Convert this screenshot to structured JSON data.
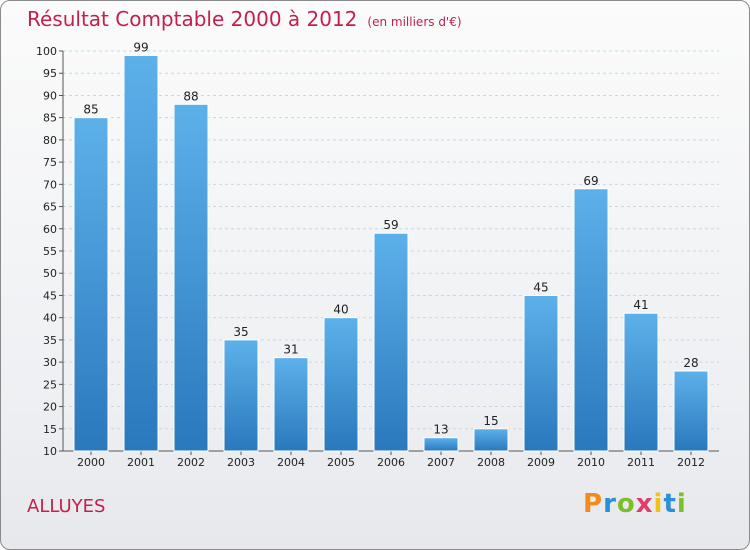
{
  "header": {
    "title": "Résultat Comptable 2000 à 2012",
    "subtitle": "(en milliers d'€)"
  },
  "footer": {
    "commune": "ALLUYES",
    "logo_letters": [
      "P",
      "r",
      "o",
      "x",
      "i",
      "t",
      "i"
    ],
    "logo_colors": [
      "#f28a1c",
      "#2a8fd6",
      "#7cbf2a",
      "#e23d6a",
      "#f2c21c",
      "#2a8fd6",
      "#7cbf2a"
    ]
  },
  "colors": {
    "title": "#c4204c",
    "bar_top": "#5db1ea",
    "bar_bottom": "#2a78bd",
    "grid": "#c9d6e4"
  },
  "chart_data": {
    "type": "bar",
    "title": "Résultat Comptable 2000 à 2012",
    "subtitle": "(en milliers d'€)",
    "categories": [
      "2000",
      "2001",
      "2002",
      "2003",
      "2004",
      "2005",
      "2006",
      "2007",
      "2008",
      "2009",
      "2010",
      "2011",
      "2012"
    ],
    "values": [
      85,
      99,
      88,
      35,
      31,
      40,
      59,
      13,
      15,
      45,
      69,
      41,
      28
    ],
    "ylim": [
      10,
      100
    ],
    "yticks": [
      10,
      15,
      20,
      25,
      30,
      35,
      40,
      45,
      50,
      55,
      60,
      65,
      70,
      75,
      80,
      85,
      90,
      95,
      100
    ],
    "grid": true,
    "xlabel": "",
    "ylabel": ""
  }
}
